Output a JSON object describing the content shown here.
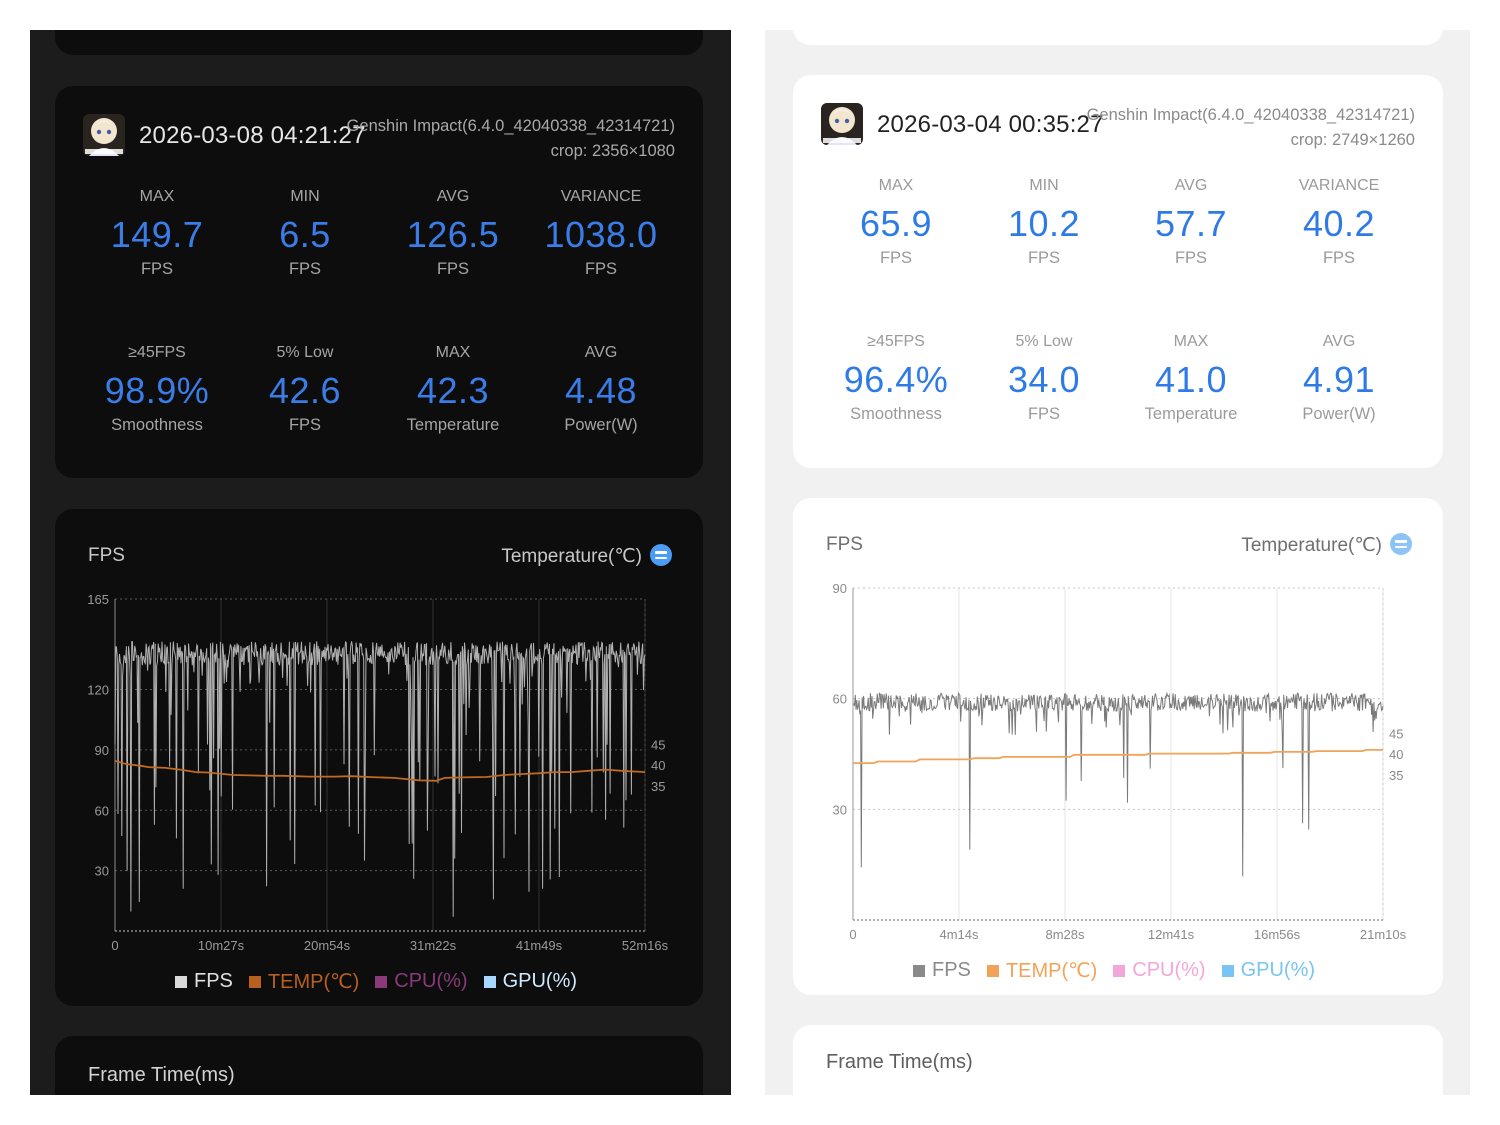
{
  "left": {
    "session": {
      "datetime": "2026-03-08 04:21:27",
      "game": "Genshin Impact(6.4.0_42040338_42314721)",
      "crop": "crop: 2356×1080"
    },
    "stats": [
      {
        "label": "MAX",
        "value": "149.7",
        "unit": "FPS"
      },
      {
        "label": "MIN",
        "value": "6.5",
        "unit": "FPS"
      },
      {
        "label": "AVG",
        "value": "126.5",
        "unit": "FPS"
      },
      {
        "label": "VARIANCE",
        "value": "1038.0",
        "unit": "FPS"
      },
      {
        "label": "≥45FPS",
        "value": "98.9%",
        "unit": "Smoothness"
      },
      {
        "label": "5% Low",
        "value": "42.6",
        "unit": "FPS"
      },
      {
        "label": "MAX",
        "value": "42.3",
        "unit": "Temperature"
      },
      {
        "label": "AVG",
        "value": "4.48",
        "unit": "Power(W)"
      }
    ],
    "chart_title": "FPS",
    "chart_right_label": "Temperature(℃)",
    "legend": [
      {
        "label": "FPS",
        "color": "#d9d9d9"
      },
      {
        "label": "TEMP(℃)",
        "color": "#b8601f"
      },
      {
        "label": "CPU(%)",
        "color": "#8a3a7a"
      },
      {
        "label": "GPU(%)",
        "color": "#a8d8ff"
      }
    ],
    "frame_title": "Frame Time(ms)",
    "chart_data": {
      "type": "line",
      "x_tick_labels": [
        "0",
        "10m27s",
        "20m54s",
        "31m22s",
        "41m49s",
        "52m16s"
      ],
      "duration_s": 3136,
      "y_left_ticks": [
        165,
        120,
        90,
        60,
        30
      ],
      "y_left_range": [
        0,
        165
      ],
      "y_right_ticks": [
        45,
        40,
        35
      ],
      "y_right_range": [
        0,
        80
      ],
      "grid": true,
      "series": [
        {
          "name": "FPS",
          "color": "#b0b0b0",
          "baseline": 138,
          "noise": 6,
          "dips": 90,
          "min": 6.5,
          "max": 149.7
        },
        {
          "name": "TEMP(℃)",
          "color": "#c06a22",
          "x": [
            0,
            60,
            150,
            200,
            300,
            400,
            480,
            550,
            700,
            800,
            900,
            1000,
            1150,
            1300,
            1400,
            1500,
            1650,
            1800,
            1900,
            1950,
            2050,
            2200,
            2300,
            2400,
            2500,
            2600,
            2700,
            2800,
            2900,
            3000,
            3136
          ],
          "y": [
            41,
            40.3,
            39.8,
            39.5,
            39.3,
            38.8,
            38.3,
            38.2,
            37.6,
            37.5,
            37.4,
            37.4,
            37.2,
            37.2,
            37.3,
            37.1,
            36.9,
            36.3,
            36.2,
            36.9,
            37.0,
            37.1,
            37.6,
            37.8,
            38.0,
            38.3,
            38.3,
            38.6,
            38.9,
            38.6,
            38.3
          ]
        }
      ]
    }
  },
  "right": {
    "session": {
      "datetime": "2026-03-04 00:35:27",
      "game": "Genshin Impact(6.4.0_42040338_42314721)",
      "crop": "crop: 2749×1260"
    },
    "stats": [
      {
        "label": "MAX",
        "value": "65.9",
        "unit": "FPS"
      },
      {
        "label": "MIN",
        "value": "10.2",
        "unit": "FPS"
      },
      {
        "label": "AVG",
        "value": "57.7",
        "unit": "FPS"
      },
      {
        "label": "VARIANCE",
        "value": "40.2",
        "unit": "FPS"
      },
      {
        "label": "≥45FPS",
        "value": "96.4%",
        "unit": "Smoothness"
      },
      {
        "label": "5% Low",
        "value": "34.0",
        "unit": "FPS"
      },
      {
        "label": "MAX",
        "value": "41.0",
        "unit": "Temperature"
      },
      {
        "label": "AVG",
        "value": "4.91",
        "unit": "Power(W)"
      }
    ],
    "chart_title": "FPS",
    "chart_right_label": "Temperature(℃)",
    "legend": [
      {
        "label": "FPS",
        "color": "#8a8a8a"
      },
      {
        "label": "TEMP(℃)",
        "color": "#f2a35a"
      },
      {
        "label": "CPU(%)",
        "color": "#f3a6d9"
      },
      {
        "label": "GPU(%)",
        "color": "#78c4f4"
      }
    ],
    "frame_title": "Frame Time(ms)",
    "chart_data": {
      "type": "line",
      "x_tick_labels": [
        "0",
        "4m14s",
        "8m28s",
        "12m41s",
        "16m56s",
        "21m10s"
      ],
      "duration_s": 1270,
      "y_left_ticks": [
        90,
        60,
        30
      ],
      "y_left_range": [
        0,
        90
      ],
      "y_right_ticks": [
        45,
        40,
        35
      ],
      "y_right_range": [
        0,
        80
      ],
      "grid": true,
      "series": [
        {
          "name": "FPS",
          "color": "#7a7a7a",
          "baseline": 59,
          "noise": 2.5,
          "dips": 14,
          "min": 10.2,
          "max": 65.9
        },
        {
          "name": "TEMP(℃)",
          "color": "#f2a35a",
          "x": [
            0,
            50,
            60,
            150,
            160,
            280,
            290,
            350,
            360,
            520,
            530,
            700,
            710,
            900,
            910,
            1000,
            1010,
            1100,
            1110,
            1220,
            1230,
            1270
          ],
          "y": [
            37.8,
            37.8,
            38.2,
            38.2,
            38.7,
            38.7,
            39.0,
            39.0,
            39.3,
            39.3,
            39.8,
            39.8,
            40.1,
            40.1,
            40.3,
            40.3,
            40.5,
            40.5,
            40.7,
            40.7,
            41.0,
            41.0
          ]
        }
      ]
    }
  }
}
